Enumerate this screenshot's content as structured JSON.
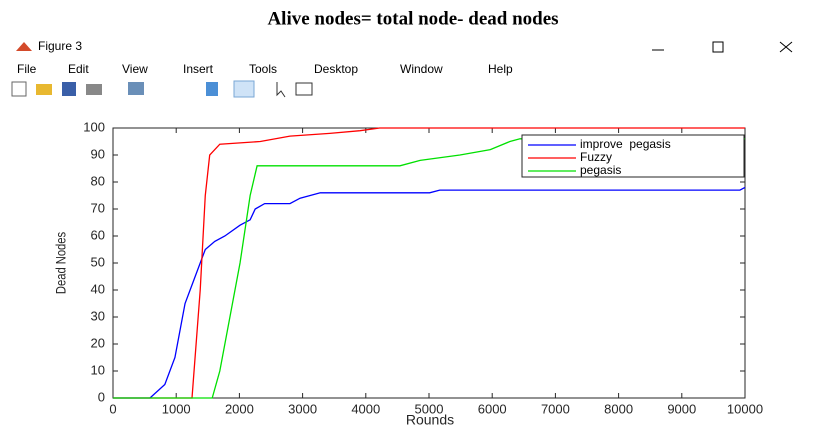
{
  "caption": "Alive nodes= total node- dead nodes",
  "window": {
    "title": "Figure 3",
    "menu": [
      "File",
      "Edit",
      "View",
      "Insert",
      "Tools",
      "Desktop",
      "Window",
      "Help"
    ]
  },
  "chart_data": {
    "type": "line",
    "xlabel": "Rounds",
    "ylabel": "Dead Nodes",
    "xlim": [
      0,
      10000
    ],
    "ylim": [
      0,
      100
    ],
    "xticks": [
      0,
      1000,
      2000,
      3000,
      4000,
      5000,
      6000,
      7000,
      8000,
      9000,
      10000
    ],
    "yticks": [
      0,
      10,
      20,
      30,
      40,
      50,
      60,
      70,
      80,
      90,
      100
    ],
    "legend": "upper right",
    "series": [
      {
        "name": "improve  pegasis",
        "color": "#0000ff",
        "x": [
          0,
          585,
          820,
          980,
          1140,
          1300,
          1460,
          1610,
          1770,
          2010,
          2170,
          2250,
          2400,
          2800,
          2960,
          3280,
          5010,
          5170,
          9920,
          10000
        ],
        "values": [
          0,
          0,
          5,
          15,
          35,
          45,
          55,
          58,
          60,
          64,
          66,
          70,
          72,
          72,
          74,
          76,
          76,
          77,
          77,
          78
        ]
      },
      {
        "name": "Fuzzy",
        "color": "#ff0000",
        "x": [
          0,
          1250,
          1380,
          1460,
          1530,
          1690,
          2330,
          2800,
          3430,
          3910,
          4220,
          10000
        ],
        "values": [
          0,
          0,
          40,
          75,
          90,
          94,
          95,
          97,
          98,
          99,
          100,
          100
        ]
      },
      {
        "name": "pegasis",
        "color": "#00e000",
        "x": [
          0,
          1570,
          1690,
          1850,
          2010,
          2170,
          2280,
          4540,
          4860,
          5490,
          5970,
          6280,
          6440,
          10000
        ],
        "values": [
          0,
          0,
          10,
          30,
          50,
          75,
          86,
          86,
          88,
          90,
          92,
          95,
          96,
          96
        ]
      }
    ]
  }
}
